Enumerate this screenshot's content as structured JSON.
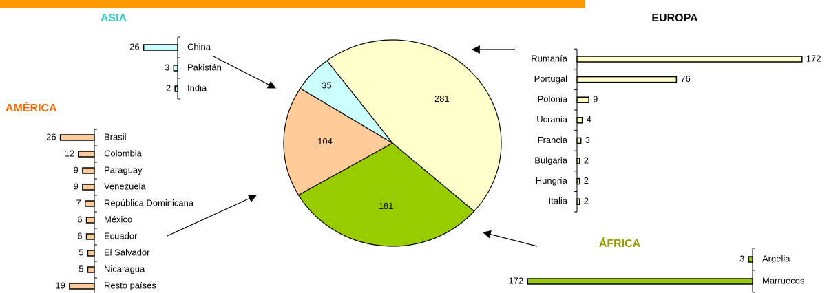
{
  "chart_data": [
    {
      "type": "pie",
      "categories": [
        "EUROPA",
        "ÁFRICA",
        "AMÉRICA",
        "ASIA"
      ],
      "values": [
        281,
        181,
        104,
        35
      ],
      "colors": [
        "#ffffcc",
        "#99cc00",
        "#ffcc99",
        "#ccffff"
      ]
    },
    {
      "type": "bar",
      "title": "ASIA",
      "title_color": "#33cccc",
      "categories": [
        "China",
        "Pakistán",
        "India"
      ],
      "values": [
        26,
        3,
        2
      ],
      "color": "#ccffff"
    },
    {
      "type": "bar",
      "title": "EUROPA",
      "title_color": "#000000",
      "categories": [
        "Rumanía",
        "Portugal",
        "Polonia",
        "Ucrania",
        "Francia",
        "Bulgaria",
        "Hungría",
        "Italia"
      ],
      "values": [
        172,
        76,
        9,
        4,
        3,
        2,
        2,
        2
      ],
      "color": "#ffffcc"
    },
    {
      "type": "bar",
      "title": "AMÉRICA",
      "title_color": "#ff6600",
      "categories": [
        "Brasil",
        "Colombia",
        "Paraguay",
        "Venezuela",
        "República Dominicana",
        "México",
        "Ecuador",
        "El Salvador",
        "Nicaragua",
        "Resto países"
      ],
      "values": [
        26,
        12,
        9,
        9,
        7,
        6,
        6,
        5,
        5,
        19
      ],
      "color": "#ffcc99"
    },
    {
      "type": "bar",
      "title": "ÁFRICA",
      "title_color": "#999900",
      "categories": [
        "Argelia",
        "Marruecos"
      ],
      "values": [
        3,
        172
      ],
      "color": "#99cc00"
    }
  ]
}
